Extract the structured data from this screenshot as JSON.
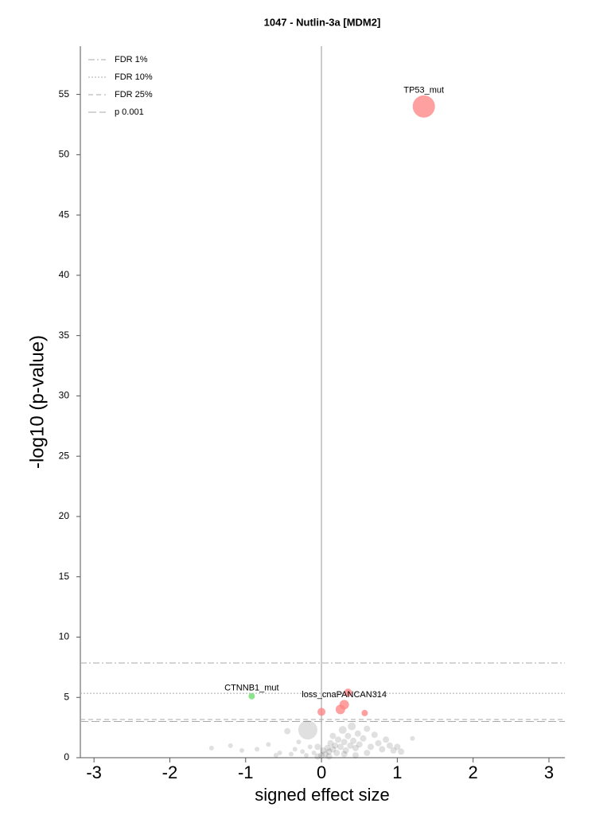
{
  "chart_data": {
    "type": "scatter",
    "title": "1047 - Nutlin-3a [MDM2]",
    "x_label": "signed effect size",
    "y_label": "-log10 (p-value)",
    "xlim": [
      -3.18,
      3.21
    ],
    "ylim": [
      0,
      59
    ],
    "xticks": [
      -3,
      -2,
      -1,
      0,
      1,
      2,
      3
    ],
    "yticks": [
      0,
      5,
      10,
      15,
      20,
      25,
      30,
      35,
      40,
      45,
      50,
      55
    ],
    "zero_line": true,
    "legend_position": "upper left",
    "thresholds": [
      {
        "name": "FDR 1%",
        "value": 7.85,
        "dash": "dashdot",
        "color": "#aaaaaa"
      },
      {
        "name": "FDR 10%",
        "value": 5.34,
        "dash": "dotted",
        "color": "#aaaaaa"
      },
      {
        "name": "FDR 25%",
        "value": 3.17,
        "dash": "dashed",
        "color": "#aaaaaa"
      },
      {
        "name": "p 0.001",
        "value": 3.0,
        "dash": "longdash",
        "color": "#aaaaaa"
      }
    ],
    "series": [
      {
        "color": "#000000",
        "opacity": 0.12,
        "x": [
          -1.45,
          -1.2,
          -1.05,
          -0.85,
          -0.7,
          -0.55,
          -0.45,
          -0.4,
          -0.3,
          -0.25,
          -0.2,
          -0.15,
          -0.1,
          -0.05,
          0.0,
          0.02,
          0.05,
          0.08,
          0.1,
          0.12,
          0.15,
          0.18,
          0.2,
          0.22,
          0.25,
          0.28,
          0.3,
          0.32,
          0.35,
          0.38,
          0.4,
          0.42,
          0.45,
          0.48,
          0.5,
          0.55,
          0.6,
          0.65,
          0.7,
          0.75,
          0.8,
          0.85,
          0.9,
          0.95,
          1.0,
          1.05,
          1.2,
          -0.6,
          -0.35,
          0.1,
          0.3,
          0.45,
          0.6,
          -0.05,
          0.15,
          -0.18
        ],
        "y": [
          0.8,
          1.0,
          0.6,
          0.7,
          1.1,
          0.4,
          2.2,
          0.3,
          1.3,
          0.5,
          0.2,
          0.9,
          0.4,
          0.1,
          0.2,
          0.6,
          0.3,
          0.8,
          0.5,
          1.2,
          0.7,
          1.0,
          0.4,
          1.5,
          0.9,
          2.3,
          1.3,
          0.6,
          1.8,
          1.0,
          2.6,
          1.4,
          0.8,
          2.0,
          1.1,
          1.6,
          2.4,
          0.9,
          1.9,
          1.2,
          0.7,
          1.5,
          1.0,
          0.6,
          0.9,
          0.5,
          1.6,
          0.2,
          0.7,
          0.1,
          0.3,
          0.2,
          0.4,
          0.9,
          1.8,
          2.3
        ],
        "sizes": [
          3,
          3,
          3,
          3,
          3,
          3,
          4,
          3,
          3,
          3,
          3,
          3,
          3,
          4,
          4,
          4,
          4,
          4,
          4,
          4,
          4,
          4,
          4,
          4,
          4,
          5,
          4,
          4,
          4,
          4,
          5,
          4,
          4,
          4,
          4,
          4,
          4,
          4,
          4,
          4,
          4,
          4,
          4,
          4,
          4,
          4,
          3,
          3,
          3,
          4,
          4,
          4,
          4,
          4,
          4,
          12
        ]
      },
      {
        "color": "#ff8080",
        "opacity": 0.75,
        "x": [
          1.35,
          0.0,
          0.25,
          0.3,
          0.35,
          0.57
        ],
        "y": [
          54,
          3.8,
          4.0,
          4.4,
          5.4,
          3.7
        ],
        "sizes": [
          14,
          5,
          6,
          6,
          5,
          4
        ],
        "labels": [
          "TP53_mut",
          null,
          null,
          "loss_cnaPANCAN314",
          null,
          null
        ]
      },
      {
        "color": "#80e080",
        "opacity": 0.9,
        "x": [
          -0.92
        ],
        "y": [
          5.1
        ],
        "sizes": [
          4
        ],
        "labels": [
          "CTNNB1_mut"
        ]
      }
    ]
  }
}
